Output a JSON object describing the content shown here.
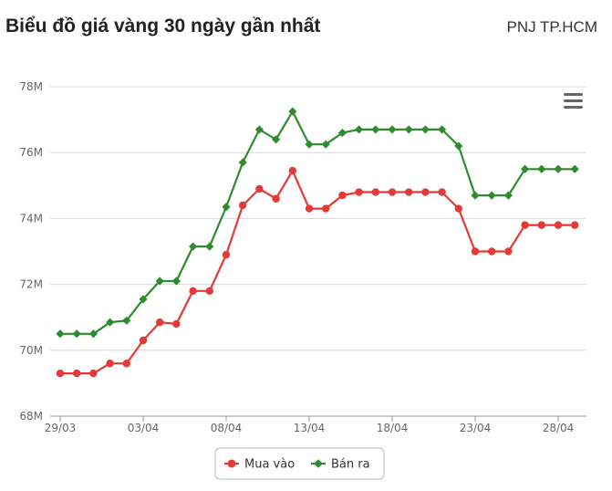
{
  "header": {
    "title": "Biểu đồ giá vàng 30 ngày gần nhất",
    "source": "PNJ TP.HCM"
  },
  "chart_data": {
    "type": "line",
    "title": "Biểu đồ giá vàng 30 ngày gần nhất",
    "xlabel": "",
    "ylabel": "",
    "ylim": [
      68,
      78
    ],
    "y_ticks": [
      "68M",
      "70M",
      "72M",
      "74M",
      "76M",
      "78M"
    ],
    "y_tick_values": [
      68,
      70,
      72,
      74,
      76,
      78
    ],
    "x_tick_labels": [
      "29/03",
      "03/04",
      "08/04",
      "13/04",
      "18/04",
      "23/04",
      "28/04"
    ],
    "x_tick_index": [
      0,
      5,
      10,
      15,
      20,
      25,
      30
    ],
    "n_points": 32,
    "grid": true,
    "legend_position": "bottom-center",
    "colors": {
      "buy": "#e53935",
      "sell": "#2e8b2e"
    },
    "series": [
      {
        "name": "Mua vào",
        "marker": "circle",
        "values": [
          69.3,
          69.3,
          69.3,
          69.6,
          69.6,
          70.3,
          70.85,
          70.8,
          71.8,
          71.8,
          72.9,
          74.4,
          74.9,
          74.6,
          75.45,
          74.3,
          74.3,
          74.7,
          74.8,
          74.8,
          74.8,
          74.8,
          74.8,
          74.8,
          74.3,
          73.0,
          73.0,
          73.0,
          73.8,
          73.8,
          73.8,
          73.8
        ]
      },
      {
        "name": "Bán ra",
        "marker": "diamond",
        "values": [
          70.5,
          70.5,
          70.5,
          70.85,
          70.9,
          71.55,
          72.1,
          72.1,
          73.15,
          73.15,
          74.35,
          75.7,
          76.7,
          76.4,
          77.25,
          76.25,
          76.25,
          76.6,
          76.7,
          76.7,
          76.7,
          76.7,
          76.7,
          76.7,
          76.2,
          74.7,
          74.7,
          74.7,
          75.5,
          75.5,
          75.5,
          75.5
        ]
      }
    ]
  }
}
